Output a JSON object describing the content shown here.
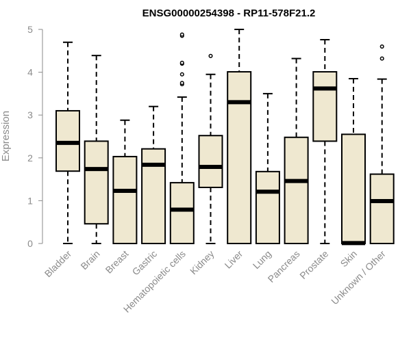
{
  "chart_data": {
    "type": "boxplot",
    "title": "ENSG00000254398 - RP11-578F21.2",
    "ylabel": "Expression",
    "xlabel": "",
    "ylim": [
      0,
      5
    ],
    "yticks": [
      0,
      1,
      2,
      3,
      4,
      5
    ],
    "grid": false,
    "legend": "none",
    "box_fill": "#efe8d0",
    "box_stroke": "#000000",
    "categories": [
      "Bladder",
      "Brain",
      "Breast",
      "Gastric",
      "Hematopoietic cells",
      "Kidney",
      "Liver",
      "Lung",
      "Pancreas",
      "Prostate",
      "Skin",
      "Unknown / Other"
    ],
    "boxes": [
      {
        "category": "Bladder",
        "whisker_low": 0.0,
        "q1": 1.69,
        "median": 2.35,
        "q3": 3.1,
        "whisker_high": 4.7,
        "outliers": []
      },
      {
        "category": "Brain",
        "whisker_low": 0.0,
        "q1": 0.46,
        "median": 1.74,
        "q3": 2.39,
        "whisker_high": 4.39,
        "outliers": []
      },
      {
        "category": "Breast",
        "whisker_low": 0.0,
        "q1": 0.0,
        "median": 1.23,
        "q3": 2.03,
        "whisker_high": 2.88,
        "outliers": []
      },
      {
        "category": "Gastric",
        "whisker_low": 0.0,
        "q1": 0.0,
        "median": 1.84,
        "q3": 2.21,
        "whisker_high": 3.2,
        "outliers": []
      },
      {
        "category": "Hematopoietic cells",
        "whisker_low": 0.0,
        "q1": 0.0,
        "median": 0.79,
        "q3": 1.42,
        "whisker_high": 3.42,
        "outliers": [
          3.72,
          3.75,
          3.95,
          4.2,
          4.22,
          4.85,
          4.88
        ]
      },
      {
        "category": "Kidney",
        "whisker_low": 0.0,
        "q1": 1.31,
        "median": 1.79,
        "q3": 2.52,
        "whisker_high": 3.95,
        "outliers": [
          4.38
        ]
      },
      {
        "category": "Liver",
        "whisker_low": 0.0,
        "q1": 0.0,
        "median": 3.3,
        "q3": 4.01,
        "whisker_high": 5.0,
        "outliers": []
      },
      {
        "category": "Lung",
        "whisker_low": 0.0,
        "q1": 0.0,
        "median": 1.21,
        "q3": 1.68,
        "whisker_high": 3.5,
        "outliers": []
      },
      {
        "category": "Pancreas",
        "whisker_low": 0.0,
        "q1": 0.0,
        "median": 1.46,
        "q3": 2.48,
        "whisker_high": 4.32,
        "outliers": []
      },
      {
        "category": "Prostate",
        "whisker_low": 0.0,
        "q1": 2.39,
        "median": 3.62,
        "q3": 4.01,
        "whisker_high": 4.76,
        "outliers": []
      },
      {
        "category": "Skin",
        "whisker_low": 0.0,
        "q1": 0.0,
        "median": 0.01,
        "q3": 2.55,
        "whisker_high": 3.85,
        "outliers": []
      },
      {
        "category": "Unknown / Other",
        "whisker_low": 0.0,
        "q1": 0.0,
        "median": 0.99,
        "q3": 1.62,
        "whisker_high": 3.84,
        "outliers": [
          4.32,
          4.6
        ]
      }
    ]
  }
}
